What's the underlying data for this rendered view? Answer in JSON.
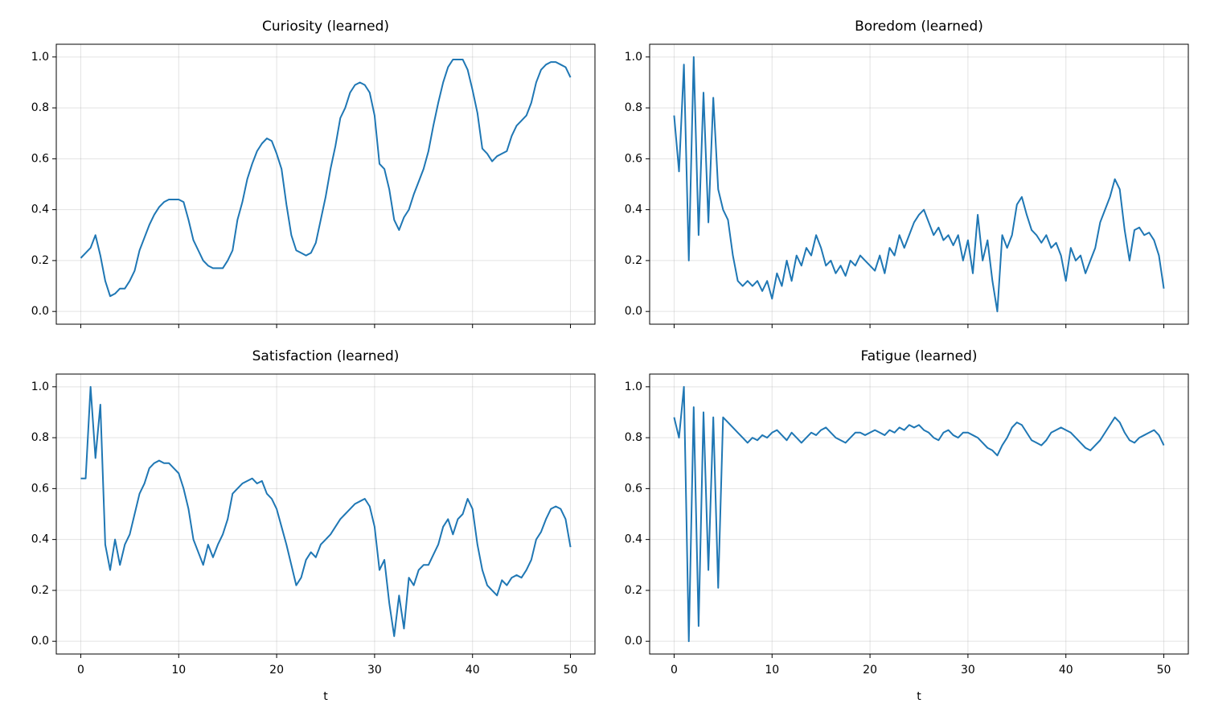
{
  "chart_data": [
    {
      "type": "line",
      "title": "Curiosity (learned)",
      "show_xticklabels": false,
      "grid": true,
      "xlim": [
        -2.5,
        52.5
      ],
      "ylim": [
        -0.05,
        1.05
      ],
      "xticks": [
        0,
        10,
        20,
        30,
        40,
        50
      ],
      "yticks": [
        {
          "value": 0,
          "label": "0.0"
        },
        0.2,
        0.4,
        0.6,
        0.8,
        {
          "value": 1,
          "label": "1.0"
        }
      ],
      "x": [
        0,
        0.5,
        1,
        1.5,
        2,
        2.5,
        3,
        3.5,
        4,
        4.5,
        5,
        5.5,
        6,
        6.5,
        7,
        7.5,
        8,
        8.5,
        9,
        9.5,
        10,
        10.5,
        11,
        11.5,
        12,
        12.5,
        13,
        13.5,
        14,
        14.5,
        15,
        15.5,
        16,
        16.5,
        17,
        17.5,
        18,
        18.5,
        19,
        19.5,
        20,
        20.5,
        21,
        21.5,
        22,
        22.5,
        23,
        23.5,
        24,
        24.5,
        25,
        25.5,
        26,
        26.5,
        27,
        27.5,
        28,
        28.5,
        29,
        29.5,
        30,
        30.5,
        31,
        31.5,
        32,
        32.5,
        33,
        33.5,
        34,
        34.5,
        35,
        35.5,
        36,
        36.5,
        37,
        37.5,
        38,
        38.5,
        39,
        39.5,
        40,
        40.5,
        41,
        41.5,
        42,
        42.5,
        43,
        43.5,
        44,
        44.5,
        45,
        45.5,
        46,
        46.5,
        47,
        47.5,
        48,
        48.5,
        49,
        49.5,
        50
      ],
      "series": [
        {
          "color": "#1f77b4",
          "values": [
            0.21,
            0.23,
            0.25,
            0.3,
            0.22,
            0.12,
            0.06,
            0.07,
            0.09,
            0.09,
            0.12,
            0.16,
            0.24,
            0.29,
            0.34,
            0.38,
            0.41,
            0.43,
            0.44,
            0.44,
            0.44,
            0.43,
            0.36,
            0.28,
            0.24,
            0.2,
            0.18,
            0.17,
            0.17,
            0.17,
            0.2,
            0.24,
            0.36,
            0.43,
            0.52,
            0.58,
            0.63,
            0.66,
            0.68,
            0.67,
            0.62,
            0.56,
            0.42,
            0.3,
            0.24,
            0.23,
            0.22,
            0.23,
            0.27,
            0.36,
            0.45,
            0.56,
            0.65,
            0.76,
            0.8,
            0.86,
            0.89,
            0.9,
            0.89,
            0.86,
            0.77,
            0.58,
            0.56,
            0.48,
            0.36,
            0.32,
            0.37,
            0.4,
            0.46,
            0.51,
            0.56,
            0.63,
            0.73,
            0.82,
            0.9,
            0.96,
            0.99,
            0.99,
            0.99,
            0.95,
            0.87,
            0.78,
            0.64,
            0.62,
            0.59,
            0.61,
            0.62,
            0.63,
            0.69,
            0.73,
            0.75,
            0.77,
            0.82,
            0.9,
            0.95,
            0.97,
            0.98,
            0.98,
            0.97,
            0.96,
            0.92
          ]
        }
      ]
    },
    {
      "type": "line",
      "title": "Boredom (learned)",
      "show_xticklabels": false,
      "grid": true,
      "xlim": [
        -2.5,
        52.5
      ],
      "ylim": [
        -0.05,
        1.05
      ],
      "xticks": [
        0,
        10,
        20,
        30,
        40,
        50
      ],
      "yticks": [
        {
          "value": 0,
          "label": "0.0"
        },
        0.2,
        0.4,
        0.6,
        0.8,
        {
          "value": 1,
          "label": "1.0"
        }
      ],
      "x": [
        0,
        0.5,
        1,
        1.5,
        2,
        2.5,
        3,
        3.5,
        4,
        4.5,
        5,
        5.5,
        6,
        6.5,
        7,
        7.5,
        8,
        8.5,
        9,
        9.5,
        10,
        10.5,
        11,
        11.5,
        12,
        12.5,
        13,
        13.5,
        14,
        14.5,
        15,
        15.5,
        16,
        16.5,
        17,
        17.5,
        18,
        18.5,
        19,
        19.5,
        20,
        20.5,
        21,
        21.5,
        22,
        22.5,
        23,
        23.5,
        24,
        24.5,
        25,
        25.5,
        26,
        26.5,
        27,
        27.5,
        28,
        28.5,
        29,
        29.5,
        30,
        30.5,
        31,
        31.5,
        32,
        32.5,
        33,
        33.5,
        34,
        34.5,
        35,
        35.5,
        36,
        36.5,
        37,
        37.5,
        38,
        38.5,
        39,
        39.5,
        40,
        40.5,
        41,
        41.5,
        42,
        42.5,
        43,
        43.5,
        44,
        44.5,
        45,
        45.5,
        46,
        46.5,
        47,
        47.5,
        48,
        48.5,
        49,
        49.5,
        50
      ],
      "series": [
        {
          "color": "#1f77b4",
          "values": [
            0.77,
            0.55,
            0.97,
            0.2,
            1.0,
            0.3,
            0.86,
            0.35,
            0.84,
            0.48,
            0.4,
            0.36,
            0.22,
            0.12,
            0.1,
            0.12,
            0.1,
            0.12,
            0.08,
            0.12,
            0.05,
            0.15,
            0.1,
            0.2,
            0.12,
            0.22,
            0.18,
            0.25,
            0.22,
            0.3,
            0.25,
            0.18,
            0.2,
            0.15,
            0.18,
            0.14,
            0.2,
            0.18,
            0.22,
            0.2,
            0.18,
            0.16,
            0.22,
            0.15,
            0.25,
            0.22,
            0.3,
            0.25,
            0.3,
            0.35,
            0.38,
            0.4,
            0.35,
            0.3,
            0.33,
            0.28,
            0.3,
            0.26,
            0.3,
            0.2,
            0.28,
            0.15,
            0.38,
            0.2,
            0.28,
            0.12,
            0.0,
            0.3,
            0.25,
            0.3,
            0.42,
            0.45,
            0.38,
            0.32,
            0.3,
            0.27,
            0.3,
            0.25,
            0.27,
            0.22,
            0.12,
            0.25,
            0.2,
            0.22,
            0.15,
            0.2,
            0.25,
            0.35,
            0.4,
            0.45,
            0.52,
            0.48,
            0.32,
            0.2,
            0.32,
            0.33,
            0.3,
            0.31,
            0.28,
            0.22,
            0.09
          ]
        }
      ]
    },
    {
      "type": "line",
      "title": "Satisfaction (learned)",
      "xlabel": "t",
      "show_xticklabels": true,
      "grid": true,
      "xlim": [
        -2.5,
        52.5
      ],
      "ylim": [
        -0.05,
        1.05
      ],
      "xticks": [
        0,
        10,
        20,
        30,
        40,
        50
      ],
      "yticks": [
        {
          "value": 0,
          "label": "0.0"
        },
        0.2,
        0.4,
        0.6,
        0.8,
        {
          "value": 1,
          "label": "1.0"
        }
      ],
      "x": [
        0,
        0.5,
        1,
        1.5,
        2,
        2.5,
        3,
        3.5,
        4,
        4.5,
        5,
        5.5,
        6,
        6.5,
        7,
        7.5,
        8,
        8.5,
        9,
        9.5,
        10,
        10.5,
        11,
        11.5,
        12,
        12.5,
        13,
        13.5,
        14,
        14.5,
        15,
        15.5,
        16,
        16.5,
        17,
        17.5,
        18,
        18.5,
        19,
        19.5,
        20,
        20.5,
        21,
        21.5,
        22,
        22.5,
        23,
        23.5,
        24,
        24.5,
        25,
        25.5,
        26,
        26.5,
        27,
        27.5,
        28,
        28.5,
        29,
        29.5,
        30,
        30.5,
        31,
        31.5,
        32,
        32.5,
        33,
        33.5,
        34,
        34.5,
        35,
        35.5,
        36,
        36.5,
        37,
        37.5,
        38,
        38.5,
        39,
        39.5,
        40,
        40.5,
        41,
        41.5,
        42,
        42.5,
        43,
        43.5,
        44,
        44.5,
        45,
        45.5,
        46,
        46.5,
        47,
        47.5,
        48,
        48.5,
        49,
        49.5,
        50
      ],
      "series": [
        {
          "color": "#1f77b4",
          "values": [
            0.64,
            0.64,
            1.0,
            0.72,
            0.93,
            0.38,
            0.28,
            0.4,
            0.3,
            0.38,
            0.42,
            0.5,
            0.58,
            0.62,
            0.68,
            0.7,
            0.71,
            0.7,
            0.7,
            0.68,
            0.66,
            0.6,
            0.52,
            0.4,
            0.35,
            0.3,
            0.38,
            0.33,
            0.38,
            0.42,
            0.48,
            0.58,
            0.6,
            0.62,
            0.63,
            0.64,
            0.62,
            0.63,
            0.58,
            0.56,
            0.52,
            0.45,
            0.38,
            0.3,
            0.22,
            0.25,
            0.32,
            0.35,
            0.33,
            0.38,
            0.4,
            0.42,
            0.45,
            0.48,
            0.5,
            0.52,
            0.54,
            0.55,
            0.56,
            0.53,
            0.45,
            0.28,
            0.32,
            0.15,
            0.02,
            0.18,
            0.05,
            0.25,
            0.22,
            0.28,
            0.3,
            0.3,
            0.34,
            0.38,
            0.45,
            0.48,
            0.42,
            0.48,
            0.5,
            0.56,
            0.52,
            0.38,
            0.28,
            0.22,
            0.2,
            0.18,
            0.24,
            0.22,
            0.25,
            0.26,
            0.25,
            0.28,
            0.32,
            0.4,
            0.43,
            0.48,
            0.52,
            0.53,
            0.52,
            0.48,
            0.37
          ]
        }
      ]
    },
    {
      "type": "line",
      "title": "Fatigue (learned)",
      "xlabel": "t",
      "show_xticklabels": true,
      "grid": true,
      "xlim": [
        -2.5,
        52.5
      ],
      "ylim": [
        -0.05,
        1.05
      ],
      "xticks": [
        0,
        10,
        20,
        30,
        40,
        50
      ],
      "yticks": [
        {
          "value": 0,
          "label": "0.0"
        },
        0.2,
        0.4,
        0.6,
        0.8,
        {
          "value": 1,
          "label": "1.0"
        }
      ],
      "x": [
        0,
        0.5,
        1,
        1.5,
        2,
        2.5,
        3,
        3.5,
        4,
        4.5,
        5,
        5.5,
        6,
        6.5,
        7,
        7.5,
        8,
        8.5,
        9,
        9.5,
        10,
        10.5,
        11,
        11.5,
        12,
        12.5,
        13,
        13.5,
        14,
        14.5,
        15,
        15.5,
        16,
        16.5,
        17,
        17.5,
        18,
        18.5,
        19,
        19.5,
        20,
        20.5,
        21,
        21.5,
        22,
        22.5,
        23,
        23.5,
        24,
        24.5,
        25,
        25.5,
        26,
        26.5,
        27,
        27.5,
        28,
        28.5,
        29,
        29.5,
        30,
        30.5,
        31,
        31.5,
        32,
        32.5,
        33,
        33.5,
        34,
        34.5,
        35,
        35.5,
        36,
        36.5,
        37,
        37.5,
        38,
        38.5,
        39,
        39.5,
        40,
        40.5,
        41,
        41.5,
        42,
        42.5,
        43,
        43.5,
        44,
        44.5,
        45,
        45.5,
        46,
        46.5,
        47,
        47.5,
        48,
        48.5,
        49,
        49.5,
        50
      ],
      "series": [
        {
          "color": "#1f77b4",
          "values": [
            0.88,
            0.8,
            1.0,
            0.0,
            0.92,
            0.06,
            0.9,
            0.28,
            0.88,
            0.21,
            0.88,
            0.86,
            0.84,
            0.82,
            0.8,
            0.78,
            0.8,
            0.79,
            0.81,
            0.8,
            0.82,
            0.83,
            0.81,
            0.79,
            0.82,
            0.8,
            0.78,
            0.8,
            0.82,
            0.81,
            0.83,
            0.84,
            0.82,
            0.8,
            0.79,
            0.78,
            0.8,
            0.82,
            0.82,
            0.81,
            0.82,
            0.83,
            0.82,
            0.81,
            0.83,
            0.82,
            0.84,
            0.83,
            0.85,
            0.84,
            0.85,
            0.83,
            0.82,
            0.8,
            0.79,
            0.82,
            0.83,
            0.81,
            0.8,
            0.82,
            0.82,
            0.81,
            0.8,
            0.78,
            0.76,
            0.75,
            0.73,
            0.77,
            0.8,
            0.84,
            0.86,
            0.85,
            0.82,
            0.79,
            0.78,
            0.77,
            0.79,
            0.82,
            0.83,
            0.84,
            0.83,
            0.82,
            0.8,
            0.78,
            0.76,
            0.75,
            0.77,
            0.79,
            0.82,
            0.85,
            0.88,
            0.86,
            0.82,
            0.79,
            0.78,
            0.8,
            0.81,
            0.82,
            0.83,
            0.81,
            0.77
          ]
        }
      ]
    }
  ]
}
